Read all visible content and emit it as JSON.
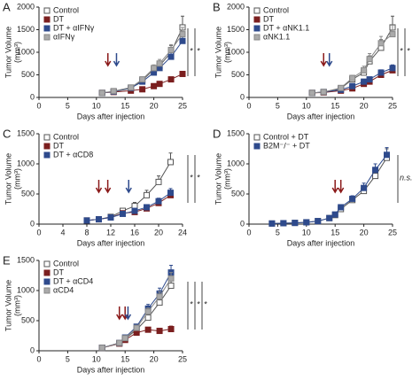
{
  "chart_data": [
    {
      "label": "A",
      "type": "line",
      "xlabel": "Days after injection",
      "ylabel": [
        "Tumor Volume",
        "(mm³)"
      ],
      "xlim": [
        0,
        25
      ],
      "xticks": [
        0,
        5,
        10,
        15,
        20,
        25
      ],
      "ylim": [
        0,
        2000
      ],
      "yticks": [
        0,
        500,
        1000,
        1500,
        2000
      ],
      "legend": "upper left",
      "x": [
        11,
        13,
        16,
        18,
        20,
        21,
        23,
        25
      ],
      "series": [
        {
          "name": "Control",
          "color": "#555555",
          "fill": "#ffffff",
          "values": [
            100,
            130,
            200,
            380,
            620,
            700,
            1000,
            1550
          ],
          "errors": [
            null,
            null,
            null,
            60,
            80,
            100,
            150,
            250
          ]
        },
        {
          "name": "DT",
          "color": "#7b1f1f",
          "fill": "#7b1f1f",
          "values": [
            100,
            120,
            150,
            180,
            250,
            300,
            400,
            520
          ],
          "errors": [
            null,
            null,
            null,
            null,
            null,
            null,
            40,
            50
          ]
        },
        {
          "name": "DT + αIFNγ",
          "color": "#2e4a8c",
          "fill": "#2e4a8c",
          "values": [
            100,
            130,
            210,
            350,
            550,
            650,
            900,
            1250
          ],
          "errors": [
            null,
            null,
            null,
            null,
            60,
            80,
            100,
            120
          ]
        },
        {
          "name": "αIFNγ",
          "color": "#888888",
          "fill": "#aaaaaa",
          "values": [
            100,
            140,
            220,
            400,
            650,
            750,
            1050,
            1400
          ],
          "errors": [
            null,
            null,
            null,
            null,
            70,
            90,
            120,
            150
          ]
        }
      ],
      "arrows": [
        {
          "x": 12,
          "color": "#8b1a1a"
        },
        {
          "x": 13.5,
          "color": "#2e4a8c"
        }
      ],
      "significance": [
        "*",
        "*"
      ]
    },
    {
      "label": "B",
      "type": "line",
      "xlabel": "Days after injection",
      "ylabel": [
        "Tumor Volume",
        "(mm³)"
      ],
      "xlim": [
        0,
        25
      ],
      "xticks": [
        0,
        5,
        10,
        15,
        20,
        25
      ],
      "ylim": [
        0,
        2000
      ],
      "yticks": [
        0,
        500,
        1000,
        1500,
        2000
      ],
      "legend": "upper left",
      "x": [
        11,
        13,
        16,
        18,
        20,
        21,
        23,
        25
      ],
      "series": [
        {
          "name": "Control",
          "color": "#555555",
          "fill": "#ffffff",
          "values": [
            100,
            120,
            200,
            400,
            550,
            800,
            1100,
            1550
          ],
          "errors": [
            null,
            null,
            null,
            80,
            100,
            120,
            180,
            250
          ]
        },
        {
          "name": "DT",
          "color": "#7b1f1f",
          "fill": "#7b1f1f",
          "values": [
            100,
            110,
            150,
            200,
            300,
            350,
            500,
            600
          ],
          "errors": [
            null,
            null,
            null,
            null,
            null,
            50,
            60,
            60
          ]
        },
        {
          "name": "DT + αNK1.1",
          "color": "#2e4a8c",
          "fill": "#2e4a8c",
          "values": [
            100,
            120,
            170,
            250,
            350,
            400,
            550,
            650
          ],
          "errors": [
            null,
            null,
            null,
            null,
            null,
            50,
            60,
            70
          ]
        },
        {
          "name": "αNK1.1",
          "color": "#888888",
          "fill": "#aaaaaa",
          "values": [
            100,
            120,
            210,
            430,
            600,
            850,
            1200,
            1400
          ],
          "errors": [
            null,
            null,
            null,
            60,
            90,
            120,
            150,
            200
          ]
        }
      ],
      "arrows": [
        {
          "x": 13,
          "color": "#8b1a1a"
        },
        {
          "x": 14,
          "color": "#2e4a8c"
        }
      ],
      "significance": [
        "*",
        "*"
      ]
    },
    {
      "label": "C",
      "type": "line",
      "xlabel": "Days after injection",
      "ylabel": [
        "Tumor Volume",
        "(mm³)"
      ],
      "xlim": [
        0,
        24
      ],
      "xticks": [
        0,
        4,
        8,
        12,
        16,
        20,
        24
      ],
      "ylim": [
        0,
        1500
      ],
      "yticks": [
        0,
        500,
        1000,
        1500
      ],
      "legend": "upper left",
      "x": [
        8,
        10,
        12,
        14,
        16,
        18,
        20,
        22
      ],
      "series": [
        {
          "name": "Control",
          "color": "#555555",
          "fill": "#ffffff",
          "values": [
            60,
            80,
            120,
            220,
            300,
            480,
            700,
            1030
          ],
          "errors": [
            null,
            null,
            null,
            null,
            60,
            80,
            100,
            150
          ]
        },
        {
          "name": "DT",
          "color": "#7b1f1f",
          "fill": "#7b1f1f",
          "values": [
            60,
            80,
            110,
            180,
            200,
            260,
            350,
            480
          ],
          "errors": [
            null,
            null,
            null,
            null,
            null,
            null,
            40,
            60
          ]
        },
        {
          "name": "DT + αCD8",
          "color": "#2e4a8c",
          "fill": "#2e4a8c",
          "values": [
            60,
            80,
            110,
            170,
            220,
            280,
            380,
            520
          ],
          "errors": [
            null,
            null,
            null,
            null,
            null,
            null,
            50,
            70
          ]
        }
      ],
      "arrows": [
        {
          "x": 10,
          "color": "#8b1a1a"
        },
        {
          "x": 11.5,
          "color": "#8b1a1a"
        },
        {
          "x": 15,
          "color": "#2e4a8c"
        }
      ],
      "significance": [
        "*",
        "*"
      ]
    },
    {
      "label": "D",
      "type": "line",
      "xlabel": "Days after injection",
      "ylabel": [
        "Tumor Volume",
        "(mm³)"
      ],
      "xlim": [
        0,
        25
      ],
      "xticks": [
        0,
        5,
        10,
        15,
        20,
        25
      ],
      "ylim": [
        0,
        1500
      ],
      "yticks": [
        0,
        500,
        1000,
        1500
      ],
      "legend": "upper left",
      "x": [
        4,
        6,
        8,
        10,
        12,
        14,
        15,
        16,
        18,
        20,
        22,
        24
      ],
      "series": [
        {
          "name": "Control + DT",
          "color": "#555555",
          "fill": "#ffffff",
          "values": [
            10,
            15,
            20,
            30,
            50,
            100,
            150,
            250,
            400,
            550,
            800,
            1100
          ],
          "errors": [
            null,
            null,
            null,
            null,
            null,
            null,
            null,
            null,
            50,
            80,
            120,
            150
          ]
        },
        {
          "name": "B2M⁻/⁻ + DT",
          "color": "#2e4a8c",
          "fill": "#2e4a8c",
          "values": [
            10,
            15,
            20,
            30,
            50,
            100,
            160,
            280,
            420,
            600,
            900,
            1150
          ],
          "errors": [
            null,
            null,
            null,
            null,
            null,
            null,
            null,
            null,
            50,
            80,
            100,
            120
          ]
        }
      ],
      "arrows": [
        {
          "x": 15,
          "color": "#8b1a1a"
        },
        {
          "x": 16,
          "color": "#8b1a1a"
        }
      ],
      "significance": [
        "n.s."
      ]
    },
    {
      "label": "E",
      "type": "line",
      "xlabel": "Days after injection",
      "ylabel": [
        "Tumor Volume",
        "(mm³)"
      ],
      "xlim": [
        0,
        25
      ],
      "xticks": [
        0,
        5,
        10,
        15,
        20,
        25
      ],
      "ylim": [
        0,
        1500
      ],
      "yticks": [
        0,
        500,
        1000,
        1500
      ],
      "legend": "upper left",
      "x": [
        11,
        14,
        15,
        17,
        19,
        21,
        23
      ],
      "series": [
        {
          "name": "Control",
          "color": "#555555",
          "fill": "#ffffff",
          "values": [
            50,
            120,
            200,
            350,
            550,
            800,
            1080
          ],
          "errors": [
            null,
            null,
            null,
            null,
            60,
            80,
            120
          ]
        },
        {
          "name": "DT",
          "color": "#7b1f1f",
          "fill": "#7b1f1f",
          "values": [
            50,
            120,
            180,
            300,
            350,
            330,
            360
          ],
          "errors": [
            null,
            null,
            null,
            null,
            40,
            40,
            50
          ]
        },
        {
          "name": "DT + αCD4",
          "color": "#2e4a8c",
          "fill": "#2e4a8c",
          "values": [
            50,
            130,
            220,
            400,
            700,
            950,
            1300
          ],
          "errors": [
            null,
            null,
            null,
            null,
            70,
            90,
            120
          ]
        },
        {
          "name": "αCD4",
          "color": "#888888",
          "fill": "#aaaaaa",
          "values": [
            50,
            130,
            210,
            380,
            650,
            900,
            1200
          ],
          "errors": [
            null,
            null,
            null,
            null,
            60,
            80,
            100
          ]
        }
      ],
      "arrows": [
        {
          "x": 14,
          "color": "#8b1a1a"
        },
        {
          "x": 15,
          "color": "#8b1a1a"
        },
        {
          "x": 15.5,
          "color": "#2e4a8c"
        }
      ],
      "significance": [
        "*",
        "*",
        "*"
      ]
    }
  ]
}
